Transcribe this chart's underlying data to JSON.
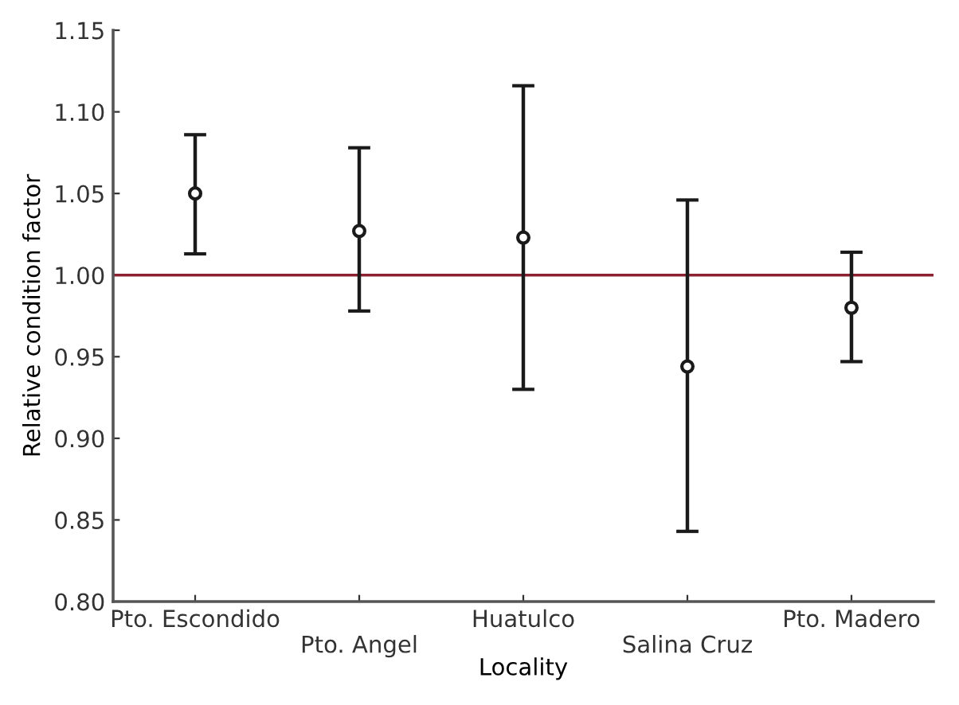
{
  "chart_data": {
    "type": "scatter",
    "xlabel": "Locality",
    "ylabel": "Relative condition factor",
    "categories": [
      "Pto. Escondido",
      "Pto. Angel",
      "Huatulco",
      "Salina Cruz",
      "Pto. Madero"
    ],
    "values": [
      1.05,
      1.027,
      1.023,
      0.944,
      0.98
    ],
    "errors": [
      [
        1.013,
        1.086
      ],
      [
        0.978,
        1.078
      ],
      [
        0.93,
        1.116
      ],
      [
        0.843,
        1.046
      ],
      [
        0.947,
        1.014
      ]
    ],
    "color": "#1a1a1a",
    "marker": "circle",
    "ylim": [
      0.8,
      1.15
    ],
    "yticks": [
      {
        "value": 0.8,
        "label": "0.80"
      },
      0.85,
      {
        "value": 0.9,
        "label": "0.90"
      },
      0.95,
      {
        "value": 1.0,
        "label": "1.00"
      },
      1.05,
      {
        "value": 1.1,
        "label": "1.10"
      },
      1.15
    ],
    "ref_lines": [
      {
        "axis": "y",
        "value": 1.0,
        "color": "#8b2232"
      }
    ],
    "grid": false
  }
}
